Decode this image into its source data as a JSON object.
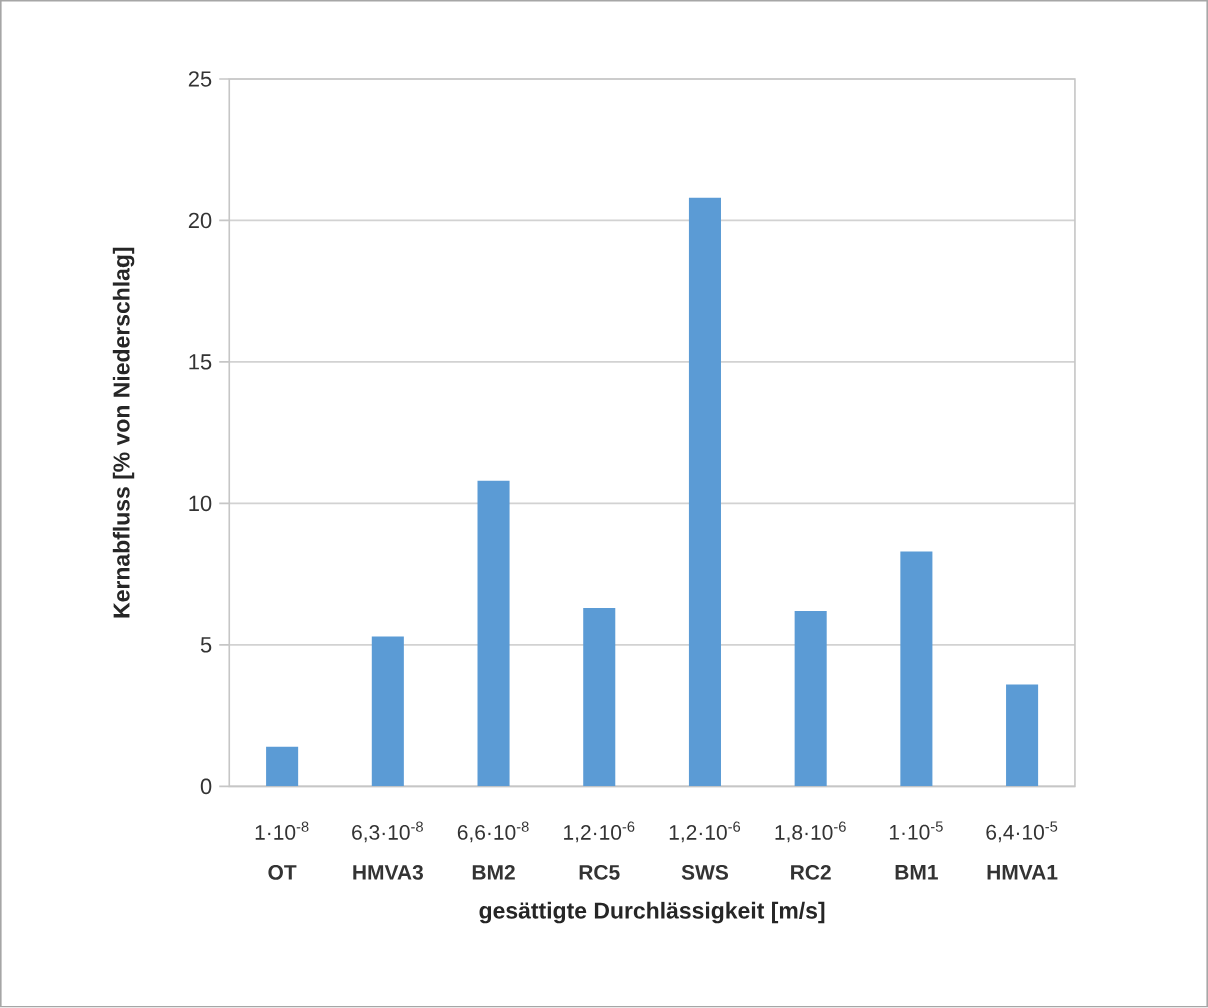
{
  "chart_data": {
    "type": "bar",
    "xlabel": "gesättigte Durchlässigkeit [m/s]",
    "ylabel": "Kernabfluss [% von Niederschlag]",
    "categories": [
      "1·10$^{-8}$ **OT**",
      "6,3·10$^{-8}$ **HMVA3**",
      "6,6·10$^{-8}$ **BM2**",
      "1,2·10$^{-6}$ **RC5**",
      "1,2·10$^{-6}$ **SWS**",
      "1,8·10$^{-6}$ **RC2**",
      "1·10$^{-5}$ **BM1**",
      "6,4·10$^{-5}$ **HMVA1**"
    ],
    "values": [
      1.4,
      5.3,
      10.8,
      6.3,
      20.8,
      6.2,
      8.3,
      3.6
    ],
    "color": "#5b9bd5",
    "ylim": [
      0,
      25
    ],
    "yticks": [
      0,
      5,
      10,
      15,
      20,
      25
    ],
    "grid": "y"
  }
}
